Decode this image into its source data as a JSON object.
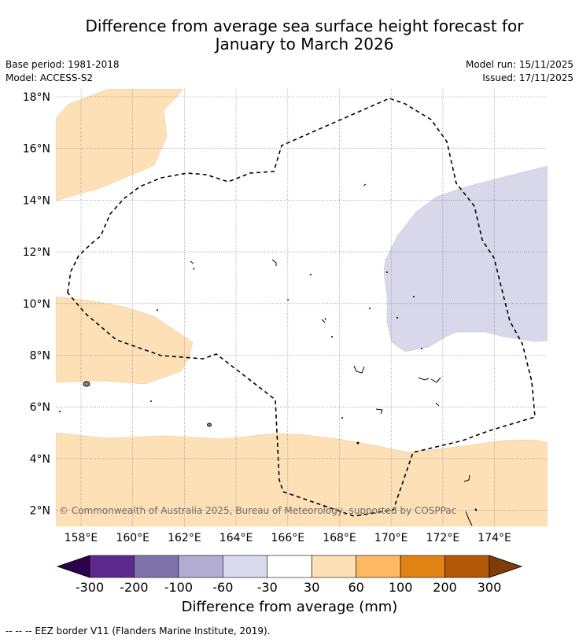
{
  "title": {
    "line1": "Difference from average sea surface height forecast for",
    "line2": "January to March 2026"
  },
  "meta": {
    "base_period": "Base period: 1981-2018",
    "model": "Model: ACCESS-S2",
    "model_run": "Model run: 15/11/2025",
    "issued": "Issued: 17/11/2025"
  },
  "map": {
    "lat_labels": [
      "18°N",
      "16°N",
      "14°N",
      "12°N",
      "10°N",
      "8°N",
      "6°N",
      "4°N",
      "2°N"
    ],
    "lon_labels": [
      "158°E",
      "160°E",
      "162°E",
      "164°E",
      "166°E",
      "168°E",
      "170°E",
      "172°E",
      "174°E"
    ],
    "copyright": "© Commonwealth of Australia 2025, Bureau of Meteorology, supported by COSPPac",
    "colors": {
      "anomaly_30_60": "#fde0b6",
      "anomaly_minus60_minus30": "#d8d8ea",
      "eez_line": "#000000"
    }
  },
  "colorbar": {
    "tick_labels": [
      "-300",
      "-200",
      "-100",
      "-60",
      "-30",
      "30",
      "60",
      "100",
      "200",
      "300"
    ],
    "colors": [
      "#2d004b",
      "#5c2a8f",
      "#8073ac",
      "#b2abd2",
      "#d8daeb",
      "#ffffff",
      "#fee0b6",
      "#fdb863",
      "#e08214",
      "#b35806",
      "#7f3b08"
    ],
    "title": "Difference from average (mm)"
  },
  "footer": {
    "legend_text": "--  --  -- EEZ border V11 (Flanders Marine Institute, 2019)."
  }
}
